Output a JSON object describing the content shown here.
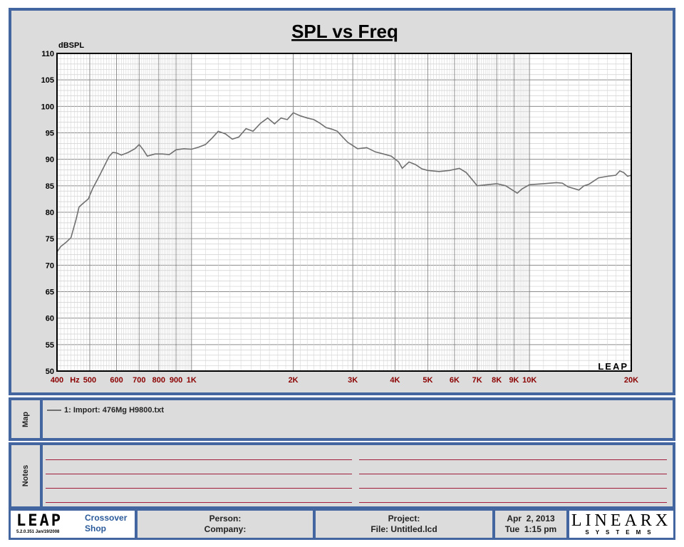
{
  "chart_data": {
    "type": "line",
    "title": "SPL vs Freq",
    "ylabel": "dBSPL",
    "xscale": "log",
    "xlim": [
      400,
      20000
    ],
    "ylim": [
      50,
      110
    ],
    "grid": true,
    "y_ticks": [
      50,
      55,
      60,
      65,
      70,
      75,
      80,
      85,
      90,
      95,
      100,
      105,
      110
    ],
    "x_ticks": [
      {
        "value": 400,
        "label": "400"
      },
      {
        "value": 500,
        "label": "500"
      },
      {
        "value": 600,
        "label": "600"
      },
      {
        "value": 700,
        "label": "700"
      },
      {
        "value": 800,
        "label": "800"
      },
      {
        "value": 900,
        "label": "900"
      },
      {
        "value": 1000,
        "label": "1K"
      },
      {
        "value": 2000,
        "label": "2K"
      },
      {
        "value": 3000,
        "label": "3K"
      },
      {
        "value": 4000,
        "label": "4K"
      },
      {
        "value": 5000,
        "label": "5K"
      },
      {
        "value": 6000,
        "label": "6K"
      },
      {
        "value": 7000,
        "label": "7K"
      },
      {
        "value": 8000,
        "label": "8K"
      },
      {
        "value": 9000,
        "label": "9K"
      },
      {
        "value": 10000,
        "label": "10K"
      },
      {
        "value": 20000,
        "label": "20K"
      }
    ],
    "x_unit": "Hz",
    "watermark": "LEAP",
    "series": [
      {
        "name": "1: Import: 476Mg H9800.txt",
        "color": "#707070",
        "points": [
          [
            400,
            72.5
          ],
          [
            410,
            73.5
          ],
          [
            425,
            74.3
          ],
          [
            440,
            75.2
          ],
          [
            455,
            78.5
          ],
          [
            465,
            81.0
          ],
          [
            480,
            81.8
          ],
          [
            495,
            82.5
          ],
          [
            510,
            84.5
          ],
          [
            530,
            86.5
          ],
          [
            550,
            88.5
          ],
          [
            570,
            90.5
          ],
          [
            585,
            91.3
          ],
          [
            600,
            91.2
          ],
          [
            620,
            90.8
          ],
          [
            650,
            91.3
          ],
          [
            680,
            92.0
          ],
          [
            700,
            92.8
          ],
          [
            720,
            91.8
          ],
          [
            740,
            90.6
          ],
          [
            780,
            91.0
          ],
          [
            820,
            91.0
          ],
          [
            860,
            90.9
          ],
          [
            900,
            91.8
          ],
          [
            950,
            92.0
          ],
          [
            1000,
            91.9
          ],
          [
            1050,
            92.3
          ],
          [
            1100,
            92.8
          ],
          [
            1150,
            94.0
          ],
          [
            1200,
            95.3
          ],
          [
            1260,
            94.8
          ],
          [
            1320,
            93.8
          ],
          [
            1380,
            94.2
          ],
          [
            1450,
            95.8
          ],
          [
            1520,
            95.3
          ],
          [
            1600,
            96.8
          ],
          [
            1680,
            97.8
          ],
          [
            1760,
            96.7
          ],
          [
            1840,
            97.8
          ],
          [
            1920,
            97.5
          ],
          [
            2000,
            98.8
          ],
          [
            2100,
            98.2
          ],
          [
            2200,
            97.8
          ],
          [
            2300,
            97.5
          ],
          [
            2400,
            96.8
          ],
          [
            2500,
            96.0
          ],
          [
            2600,
            95.7
          ],
          [
            2700,
            95.3
          ],
          [
            2800,
            94.2
          ],
          [
            2900,
            93.2
          ],
          [
            3000,
            92.6
          ],
          [
            3100,
            92.0
          ],
          [
            3300,
            92.2
          ],
          [
            3500,
            91.4
          ],
          [
            3700,
            91.0
          ],
          [
            3900,
            90.6
          ],
          [
            4100,
            89.5
          ],
          [
            4200,
            88.3
          ],
          [
            4400,
            89.5
          ],
          [
            4600,
            89.0
          ],
          [
            4800,
            88.2
          ],
          [
            5000,
            87.9
          ],
          [
            5400,
            87.7
          ],
          [
            5800,
            87.9
          ],
          [
            6200,
            88.3
          ],
          [
            6500,
            87.5
          ],
          [
            6800,
            86.0
          ],
          [
            7000,
            85.0
          ],
          [
            7500,
            85.2
          ],
          [
            8000,
            85.4
          ],
          [
            8500,
            85.0
          ],
          [
            9000,
            84.0
          ],
          [
            9200,
            83.6
          ],
          [
            9500,
            84.4
          ],
          [
            10000,
            85.2
          ],
          [
            11000,
            85.4
          ],
          [
            12000,
            85.6
          ],
          [
            12500,
            85.5
          ],
          [
            13000,
            84.8
          ],
          [
            14000,
            84.2
          ],
          [
            14500,
            85.0
          ],
          [
            15000,
            85.3
          ],
          [
            16000,
            86.5
          ],
          [
            17000,
            86.8
          ],
          [
            18000,
            87.0
          ],
          [
            18500,
            87.8
          ],
          [
            19000,
            87.5
          ],
          [
            19500,
            86.8
          ],
          [
            20000,
            87.0
          ]
        ]
      }
    ]
  },
  "map": {
    "label": "Map",
    "entries": [
      {
        "text": "1: Import: 476Mg H9800.txt"
      }
    ]
  },
  "notes": {
    "label": "Notes"
  },
  "footer": {
    "logo_text": "LEAP",
    "version": "5.2.0.351   Jan/19/2008",
    "product_line1": "Crossover",
    "product_line2": "Shop",
    "person_label": "Person:",
    "company_label": "Company:",
    "project_label": "Project:",
    "file_label": "File: Untitled.lcd",
    "date": "Apr  2, 2013",
    "time": "Tue  1:15 pm",
    "brand": "LINEARX",
    "brand_sub": "SYSTEMS"
  },
  "colors": {
    "frame": "#4466a0",
    "panel_bg": "#dcdcdc",
    "tick_label": "#8b0000",
    "note_line": "#a01e3c",
    "product_text": "#2a5a9a"
  }
}
